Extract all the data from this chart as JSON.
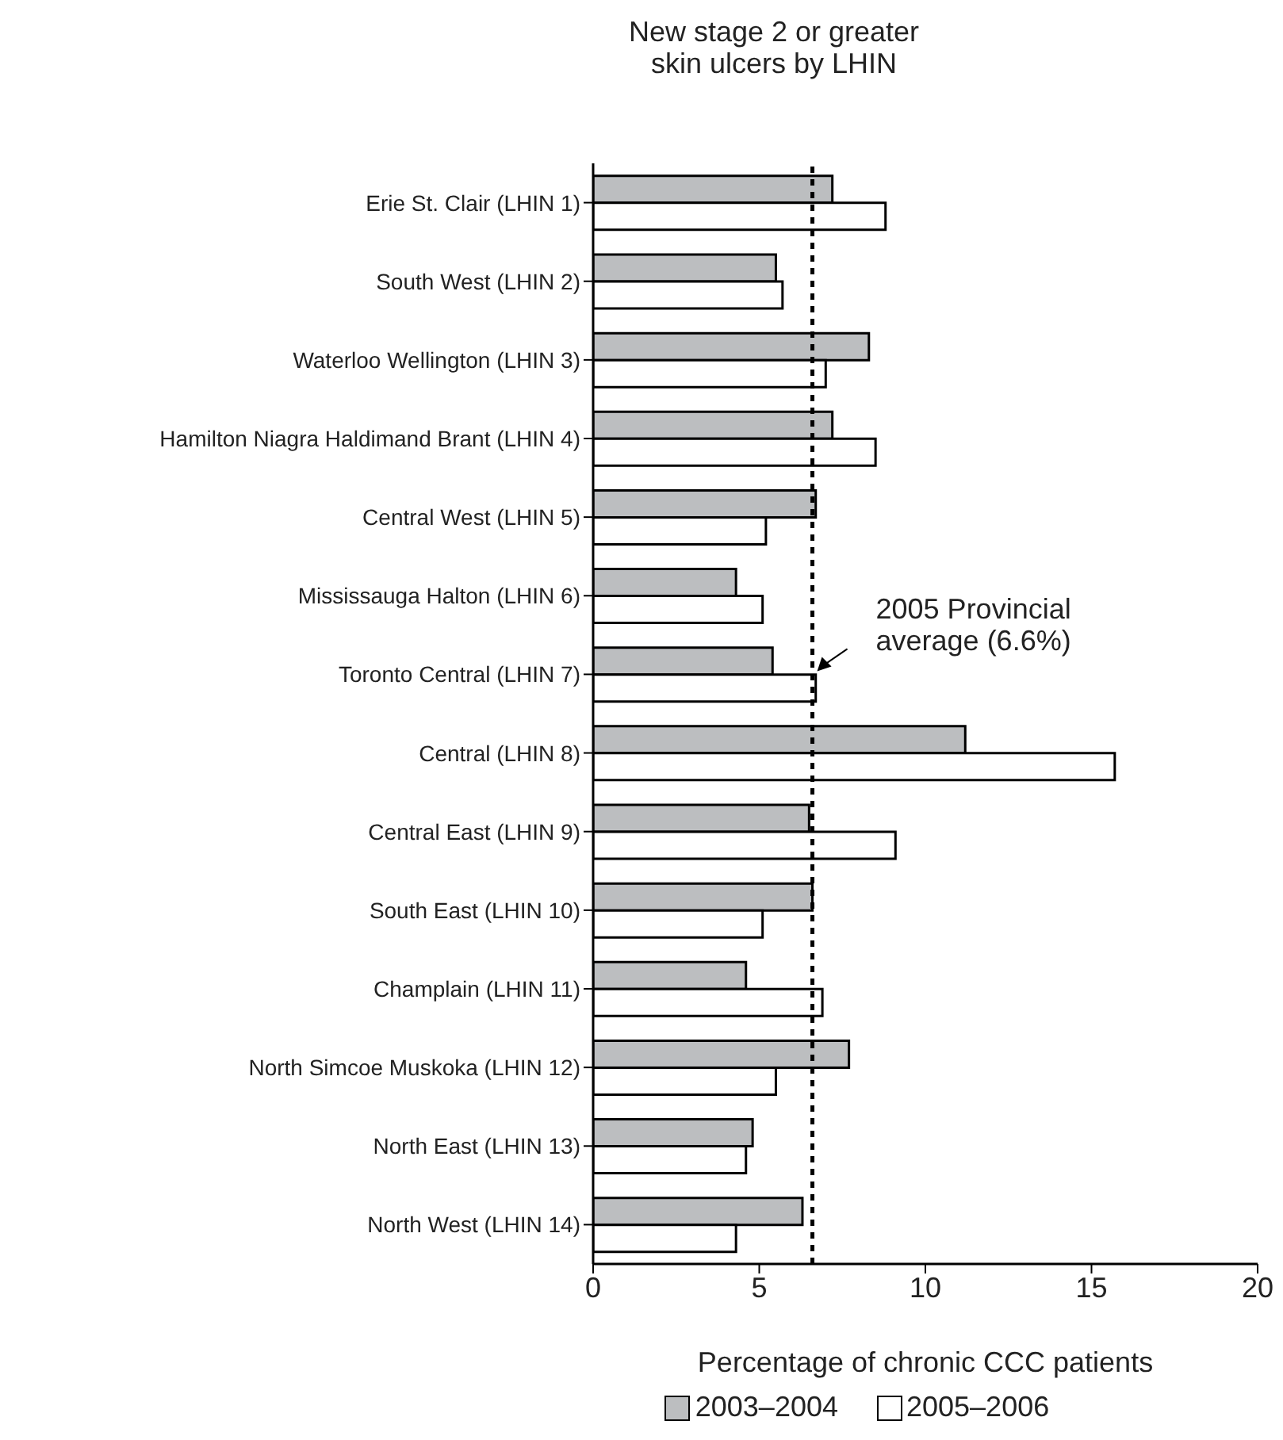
{
  "chart_data": {
    "type": "bar",
    "orientation": "horizontal",
    "title": "New stage 2 or greater skin ulcers by LHIN",
    "xlabel": "Percentage of chronic CCC patients",
    "categories": [
      "Erie St. Clair (LHIN 1)",
      "South West (LHIN 2)",
      "Waterloo Wellington (LHIN 3)",
      "Hamilton Niagra Haldimand Brant (LHIN 4)",
      "Central West (LHIN 5)",
      "Mississauga Halton (LHIN 6)",
      "Toronto Central (LHIN 7)",
      "Central (LHIN 8)",
      "Central East (LHIN 9)",
      "South East (LHIN 10)",
      "Champlain (LHIN 11)",
      "North Simcoe Muskoka (LHIN 12)",
      "North East (LHIN 13)",
      "North West (LHIN 14)"
    ],
    "series": [
      {
        "name": "2003–2004",
        "color": "#bcbec0",
        "values": [
          7.2,
          5.5,
          8.3,
          7.2,
          6.7,
          4.3,
          5.4,
          11.2,
          6.5,
          6.6,
          4.6,
          7.7,
          4.8,
          6.3
        ]
      },
      {
        "name": "2005–2006",
        "color": "#ffffff",
        "values": [
          8.8,
          5.7,
          7.0,
          8.5,
          5.2,
          5.1,
          6.7,
          15.7,
          9.1,
          5.1,
          6.9,
          5.5,
          4.6,
          4.3
        ]
      }
    ],
    "xlim": [
      0,
      20
    ],
    "xticks": [
      0,
      5,
      10,
      15,
      20
    ],
    "ref_lines": [
      {
        "axis": "x",
        "value": 6.6,
        "line_style": "dashed",
        "color": "#000000"
      }
    ],
    "annotations": [
      {
        "text": "2005 Provincial average (6.6%)",
        "x": 6.6,
        "y": "Toronto Central (LHIN 7)"
      }
    ],
    "legend": "bottom"
  }
}
